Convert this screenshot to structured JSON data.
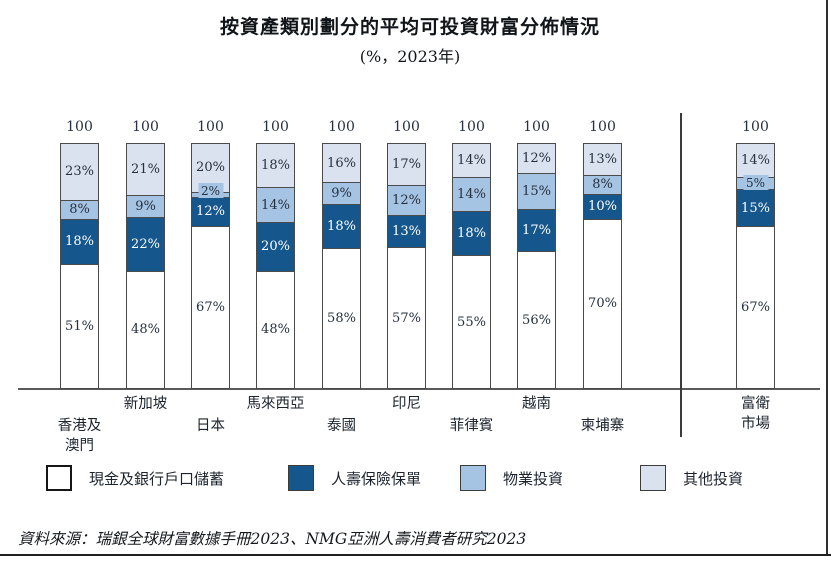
{
  "title": "按資產類別劃分的平均可投資財富分佈情況",
  "subtitle": "(%，2023年)",
  "source": "資料來源：瑞銀全球財富數據手冊2023、NMG亞洲人壽消費者研究2023",
  "colors": {
    "cash": "#FFFFFF",
    "life_insurance": "#15568C",
    "property": "#A5C3E3",
    "other": "#DBE2EF",
    "label_dark": "#26303f",
    "label_light": "#FFFFFF"
  },
  "legend": [
    {
      "label": "現金及銀行戶口儲蓄",
      "color": "#FFFFFF"
    },
    {
      "label": "人壽保險保單",
      "color": "#15568C"
    },
    {
      "label": "物業投資",
      "color": "#A5C3E3"
    },
    {
      "label": "其他投資",
      "color": "#DBE2EF"
    }
  ],
  "chart_data": {
    "type": "bar",
    "stacked": true,
    "unit": "%",
    "year": "2023",
    "total_label": "100",
    "categories": [
      {
        "label": "香港及澳門",
        "lines": [
          "香港及",
          "澳門"
        ],
        "row": "lower"
      },
      {
        "label": "新加坡",
        "lines": [
          "新加坡"
        ],
        "row": "upper"
      },
      {
        "label": "日本",
        "lines": [
          "日本"
        ],
        "row": "lower"
      },
      {
        "label": "馬來西亞",
        "lines": [
          "馬來西亞"
        ],
        "row": "upper"
      },
      {
        "label": "泰國",
        "lines": [
          "泰國"
        ],
        "row": "lower"
      },
      {
        "label": "印尼",
        "lines": [
          "印尼"
        ],
        "row": "upper"
      },
      {
        "label": "菲律賓",
        "lines": [
          "菲律賓"
        ],
        "row": "lower"
      },
      {
        "label": "越南",
        "lines": [
          "越南"
        ],
        "row": "upper"
      },
      {
        "label": "柬埔寨",
        "lines": [
          "柬埔寨"
        ],
        "row": "lower"
      },
      {
        "label": "富衛市場",
        "lines": [
          "富衛",
          "市場"
        ],
        "row": "upper"
      }
    ],
    "series": [
      {
        "name": "現金及銀行戶口儲蓄",
        "key": "cash",
        "color": "#FFFFFF",
        "text": "#26303f",
        "values": [
          51,
          48,
          67,
          48,
          58,
          57,
          55,
          56,
          70,
          67
        ]
      },
      {
        "name": "人壽保險保單",
        "key": "life_insurance",
        "color": "#15568C",
        "text": "#FFFFFF",
        "values": [
          18,
          22,
          12,
          20,
          18,
          13,
          18,
          17,
          10,
          15
        ]
      },
      {
        "name": "物業投資",
        "key": "property",
        "color": "#A5C3E3",
        "text": "#26303f",
        "values": [
          8,
          9,
          2,
          14,
          9,
          12,
          14,
          15,
          8,
          5
        ]
      },
      {
        "name": "其他投資",
        "key": "other",
        "color": "#DBE2EF",
        "text": "#26303f",
        "values": [
          23,
          21,
          20,
          18,
          16,
          17,
          14,
          12,
          13,
          14
        ]
      }
    ],
    "value_suffix": "%",
    "ylim": [
      0,
      100
    ],
    "grid": false,
    "legend_position": "bottom",
    "note": "每一柱頂標示總數100；最右柱（富衛市場）以分隔線與其他市場分開"
  }
}
